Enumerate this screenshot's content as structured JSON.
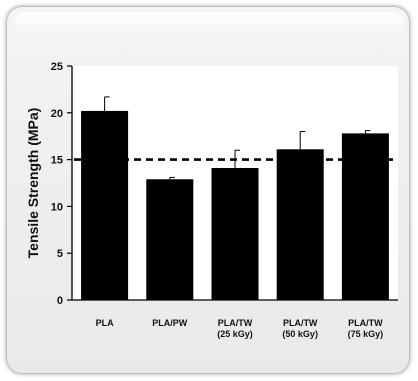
{
  "chart_data": {
    "type": "bar",
    "categories": [
      [
        "PLA"
      ],
      [
        "PLA/PW"
      ],
      [
        "PLA/TW",
        "(25 kGy)"
      ],
      [
        "PLA/TW",
        "(50 kGy)"
      ],
      [
        "PLA/TW",
        "(75 kGy)"
      ]
    ],
    "values": [
      20.2,
      12.9,
      14.1,
      16.1,
      17.8
    ],
    "errors": [
      1.5,
      0.2,
      1.9,
      1.9,
      0.3
    ],
    "ylabel": "Tensile Strength (MPa)",
    "ylim": [
      0,
      25
    ],
    "yticks": [
      0,
      5,
      10,
      15,
      20,
      25
    ],
    "reference_line": {
      "value": 15,
      "style": "dashed"
    },
    "grid": false,
    "bar_color": "#000000"
  }
}
